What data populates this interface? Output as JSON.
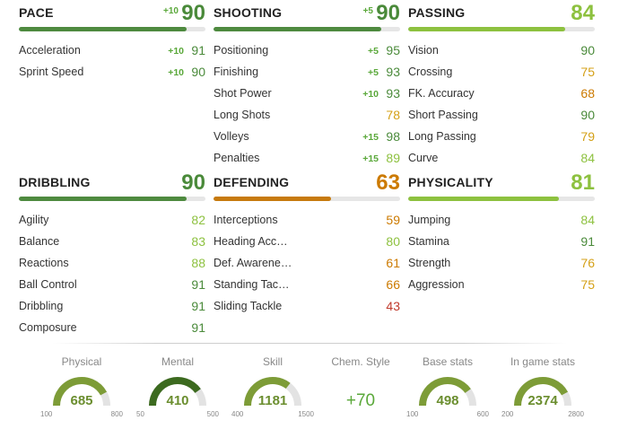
{
  "categories": [
    {
      "id": "pace",
      "name": "PACE",
      "boost": "+10",
      "value": "90",
      "fill": "f-dg",
      "color": "c-dg",
      "pct": 0.9,
      "rows": [
        {
          "label": "Acceleration",
          "boost": "+10",
          "value": "91",
          "color": "c-dg"
        },
        {
          "label": "Sprint Speed",
          "boost": "+10",
          "value": "90",
          "color": "c-dg"
        }
      ]
    },
    {
      "id": "shooting",
      "name": "SHOOTING",
      "boost": "+5",
      "value": "90",
      "fill": "f-dg",
      "color": "c-dg",
      "pct": 0.9,
      "rows": [
        {
          "label": "Positioning",
          "boost": "+5",
          "value": "95",
          "color": "c-dg"
        },
        {
          "label": "Finishing",
          "boost": "+5",
          "value": "93",
          "color": "c-dg"
        },
        {
          "label": "Shot Power",
          "boost": "+10",
          "value": "93",
          "color": "c-dg"
        },
        {
          "label": "Long Shots",
          "boost": "",
          "value": "78",
          "color": "c-y"
        },
        {
          "label": "Volleys",
          "boost": "+15",
          "value": "98",
          "color": "c-dg"
        },
        {
          "label": "Penalties",
          "boost": "+15",
          "value": "89",
          "color": "c-lg"
        }
      ]
    },
    {
      "id": "passing",
      "name": "PASSING",
      "boost": "",
      "value": "84",
      "fill": "f-lg",
      "color": "c-lg",
      "pct": 0.84,
      "rows": [
        {
          "label": "Vision",
          "boost": "",
          "value": "90",
          "color": "c-dg"
        },
        {
          "label": "Crossing",
          "boost": "",
          "value": "75",
          "color": "c-y"
        },
        {
          "label": "FK. Accuracy",
          "boost": "",
          "value": "68",
          "color": "c-o"
        },
        {
          "label": "Short Passing",
          "boost": "",
          "value": "90",
          "color": "c-dg"
        },
        {
          "label": "Long Passing",
          "boost": "",
          "value": "79",
          "color": "c-y"
        },
        {
          "label": "Curve",
          "boost": "",
          "value": "84",
          "color": "c-lg"
        }
      ]
    },
    {
      "id": "dribbling",
      "name": "DRIBBLING",
      "boost": "",
      "value": "90",
      "fill": "f-dg",
      "color": "c-dg",
      "pct": 0.9,
      "rows": [
        {
          "label": "Agility",
          "boost": "",
          "value": "82",
          "color": "c-lg"
        },
        {
          "label": "Balance",
          "boost": "",
          "value": "83",
          "color": "c-lg"
        },
        {
          "label": "Reactions",
          "boost": "",
          "value": "88",
          "color": "c-lg"
        },
        {
          "label": "Ball Control",
          "boost": "",
          "value": "91",
          "color": "c-dg"
        },
        {
          "label": "Dribbling",
          "boost": "",
          "value": "91",
          "color": "c-dg"
        },
        {
          "label": "Composure",
          "boost": "",
          "value": "91",
          "color": "c-dg"
        }
      ]
    },
    {
      "id": "defending",
      "name": "DEFENDING",
      "boost": "",
      "value": "63",
      "fill": "f-o",
      "color": "c-o",
      "pct": 0.63,
      "rows": [
        {
          "label": "Interceptions",
          "boost": "",
          "value": "59",
          "color": "c-o"
        },
        {
          "label": "Heading Acc…",
          "boost": "",
          "value": "80",
          "color": "c-lg"
        },
        {
          "label": "Def. Awarene…",
          "boost": "",
          "value": "61",
          "color": "c-o"
        },
        {
          "label": "Standing Tac…",
          "boost": "",
          "value": "66",
          "color": "c-o"
        },
        {
          "label": "Sliding Tackle",
          "boost": "",
          "value": "43",
          "color": "c-r"
        }
      ]
    },
    {
      "id": "physicality",
      "name": "PHYSICALITY",
      "boost": "",
      "value": "81",
      "fill": "f-lg",
      "color": "c-lg",
      "pct": 0.81,
      "rows": [
        {
          "label": "Jumping",
          "boost": "",
          "value": "84",
          "color": "c-lg"
        },
        {
          "label": "Stamina",
          "boost": "",
          "value": "91",
          "color": "c-dg"
        },
        {
          "label": "Strength",
          "boost": "",
          "value": "76",
          "color": "c-y"
        },
        {
          "label": "Aggression",
          "boost": "",
          "value": "75",
          "color": "c-y"
        }
      ]
    }
  ],
  "summary": {
    "physical": {
      "label": "Physical",
      "value": "685",
      "min": "100",
      "max": "800",
      "fraction": 0.84,
      "color": "#7d9c37"
    },
    "mental": {
      "label": "Mental",
      "value": "410",
      "min": "50",
      "max": "500",
      "fraction": 0.8,
      "color": "#3c6a1f"
    },
    "skill": {
      "label": "Skill",
      "value": "1181",
      "min": "400",
      "max": "1500",
      "fraction": 0.71,
      "color": "#7d9c37"
    },
    "chem": {
      "label": "Chem. Style",
      "value": "+70"
    },
    "base": {
      "label": "Base stats",
      "value": "498",
      "min": "100",
      "max": "600",
      "fraction": 0.8,
      "color": "#7d9c37"
    },
    "ingame": {
      "label": "In game stats",
      "value": "2374",
      "min": "200",
      "max": "2800",
      "fraction": 0.84,
      "color": "#7d9c37"
    }
  }
}
